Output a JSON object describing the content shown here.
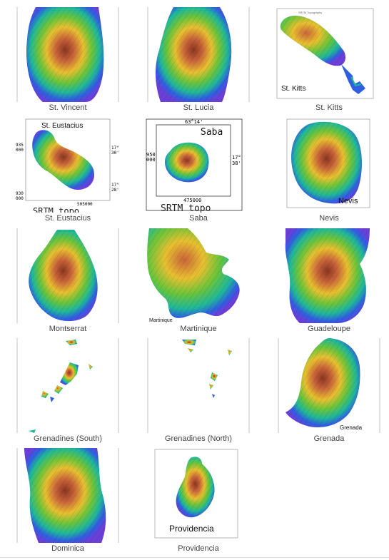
{
  "gallery": {
    "items": [
      {
        "caption": "St. Vincent"
      },
      {
        "caption": "St. Lucia"
      },
      {
        "caption": "St. Kitts",
        "map_label": "St. Kitts",
        "header": "SRTM Topography"
      },
      {
        "caption": "St. Eustacius",
        "map_label": "St. Eustacius",
        "footer": "SRTM topo",
        "coords": [
          "935",
          "000",
          "930",
          "000",
          "17°",
          "30'",
          "17°",
          "28'",
          "505000"
        ]
      },
      {
        "caption": "Saba",
        "map_label": "Saba",
        "footer": "SRTM topo",
        "coords": [
          "63°14'",
          "950",
          "000",
          "17°",
          "38'",
          "475000"
        ]
      },
      {
        "caption": "Nevis",
        "map_label": "Nevis"
      },
      {
        "caption": "Montserrat"
      },
      {
        "caption": "Martinique",
        "map_label": "Martinique"
      },
      {
        "caption": "Guadeloupe"
      },
      {
        "caption": "Grenadines (South)"
      },
      {
        "caption": "Grenadines (North)"
      },
      {
        "caption": "Grenada",
        "map_label": "Grenada"
      },
      {
        "caption": "Dominica"
      },
      {
        "caption": "Providencia",
        "map_label": "Providencia"
      }
    ]
  },
  "colors": {
    "lowland": "#6b3fd8",
    "coast": "#2f5fe0",
    "low": "#1fb89a",
    "mid": "#6cc43a",
    "high": "#e8c030",
    "peak": "#c8643a",
    "summit": "#8a3520"
  }
}
